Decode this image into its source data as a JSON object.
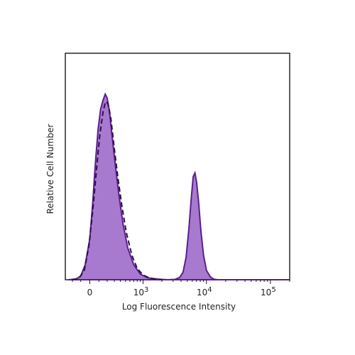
{
  "chart_data": {
    "type": "area",
    "title": "",
    "xlabel": "Log Fluorescence Intensity",
    "ylabel": "Relative Cell Number",
    "x_scale": "biexponential",
    "xlim": [
      -300,
      200000
    ],
    "ylim": [
      0,
      100
    ],
    "x_ticks": [
      {
        "value": 0,
        "base": "0",
        "exp": ""
      },
      {
        "value": 1000,
        "base": "10",
        "exp": "3"
      },
      {
        "value": 10000,
        "base": "10",
        "exp": "4"
      },
      {
        "value": 100000,
        "base": "10",
        "exp": "5"
      }
    ],
    "grid": false,
    "colors": {
      "fill": "#a77ad0",
      "stroke": "#5a1f8a",
      "control": "#2d0f4a"
    },
    "series": [
      {
        "style": "filled-solid",
        "points": [
          [
            -250,
            0
          ],
          [
            -150,
            0.5
          ],
          [
            -100,
            2
          ],
          [
            -50,
            8
          ],
          [
            0,
            22
          ],
          [
            30,
            40
          ],
          [
            60,
            62
          ],
          [
            90,
            80
          ],
          [
            120,
            91
          ],
          [
            150,
            96
          ],
          [
            175,
            99
          ],
          [
            200,
            97
          ],
          [
            230,
            90
          ],
          [
            270,
            76
          ],
          [
            320,
            60
          ],
          [
            380,
            44
          ],
          [
            450,
            30
          ],
          [
            550,
            17
          ],
          [
            700,
            8
          ],
          [
            900,
            3
          ],
          [
            1200,
            1
          ],
          [
            1800,
            0.3
          ],
          [
            2500,
            0
          ],
          [
            3200,
            0.2
          ],
          [
            3800,
            1.2
          ],
          [
            4300,
            4
          ],
          [
            4800,
            12
          ],
          [
            5300,
            27
          ],
          [
            5800,
            44
          ],
          [
            6200,
            55
          ],
          [
            6600,
            57
          ],
          [
            7000,
            52
          ],
          [
            7500,
            42
          ],
          [
            8200,
            26
          ],
          [
            9000,
            13
          ],
          [
            10000,
            5
          ],
          [
            11500,
            1.5
          ],
          [
            13000,
            0.3
          ],
          [
            15000,
            0
          ],
          [
            30000,
            0
          ],
          [
            100000,
            0
          ],
          [
            200000,
            0
          ]
        ]
      },
      {
        "style": "dashed",
        "points": [
          [
            -200,
            0
          ],
          [
            -120,
            0.8
          ],
          [
            -60,
            5
          ],
          [
            -10,
            18
          ],
          [
            30,
            36
          ],
          [
            70,
            57
          ],
          [
            110,
            77
          ],
          [
            150,
            90
          ],
          [
            180,
            95
          ],
          [
            210,
            94
          ],
          [
            250,
            86
          ],
          [
            300,
            70
          ],
          [
            360,
            54
          ],
          [
            430,
            39
          ],
          [
            520,
            25
          ],
          [
            650,
            13
          ],
          [
            800,
            6
          ],
          [
            1000,
            2.5
          ],
          [
            1300,
            0.8
          ],
          [
            1700,
            0.1
          ],
          [
            2000,
            0
          ]
        ]
      }
    ]
  }
}
